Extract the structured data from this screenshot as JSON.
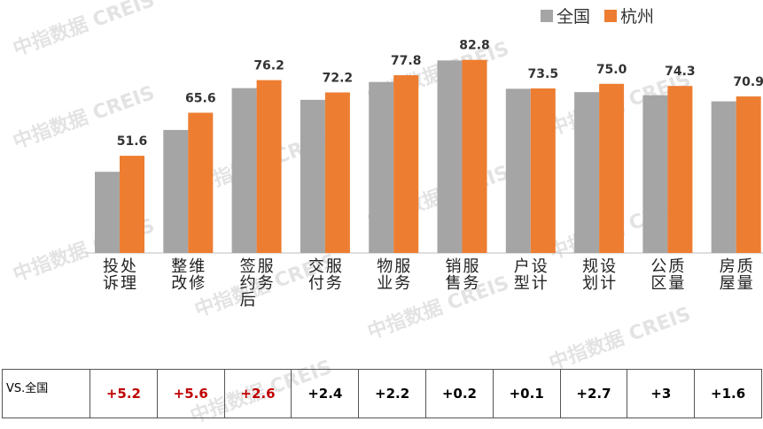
{
  "legend": [
    {
      "name": "全国",
      "color": "#a5a5a5"
    },
    {
      "name": "杭州",
      "color": "#ed7d31"
    }
  ],
  "watermark": "中指数据 CREIS",
  "chart_data": {
    "type": "bar",
    "categories": [
      "投诉处理",
      "整改维修",
      "签约后服务",
      "交付服务",
      "物业服务",
      "销售服务",
      "户型设计",
      "规划设计",
      "公区质量",
      "房屋质量"
    ],
    "series": [
      {
        "name": "全国",
        "values": [
          46.4,
          60.0,
          73.6,
          69.8,
          75.6,
          82.6,
          73.4,
          72.3,
          71.3,
          69.3
        ]
      },
      {
        "name": "杭州",
        "values": [
          51.6,
          65.6,
          76.2,
          72.2,
          77.8,
          82.8,
          73.5,
          75.0,
          74.3,
          70.9
        ]
      }
    ],
    "data_labels": [
      "51.6",
      "65.6",
      "76.2",
      "72.2",
      "77.8",
      "82.8",
      "73.5",
      "75.0",
      "74.3",
      "70.9"
    ],
    "ylim": [
      20,
      85
    ],
    "grid": false,
    "legend_position": "top-right"
  },
  "table": {
    "header": "VS.全国",
    "diffs": [
      {
        "text": "+5.2",
        "color": "#c00000"
      },
      {
        "text": "+5.6",
        "color": "#c00000"
      },
      {
        "text": "+2.6",
        "color": "#c00000"
      },
      {
        "text": "+2.4",
        "color": "#000000"
      },
      {
        "text": "+2.2",
        "color": "#000000"
      },
      {
        "text": "+0.2",
        "color": "#000000"
      },
      {
        "text": "+0.1",
        "color": "#000000"
      },
      {
        "text": "+2.7",
        "color": "#000000"
      },
      {
        "text": "+3",
        "color": "#000000"
      },
      {
        "text": "+1.6",
        "color": "#000000"
      }
    ]
  }
}
